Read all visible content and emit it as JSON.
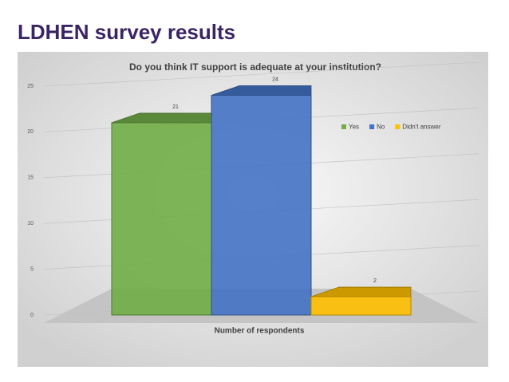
{
  "slide_title": "LDHEN survey results",
  "chart_data": {
    "type": "bar",
    "title": "Do you think IT support is adequate at your institution?",
    "x_label": "Number of respondents",
    "categories": [
      null
    ],
    "series": [
      {
        "name": "Yes",
        "color": "#70ad47",
        "values": [
          21
        ]
      },
      {
        "name": "No",
        "color": "#4472c4",
        "values": [
          24
        ]
      },
      {
        "name": "Didn't answer",
        "color": "#ffc000",
        "values": [
          2
        ]
      }
    ],
    "ylim": [
      0,
      25
    ],
    "yticks": [
      0,
      5,
      10,
      15,
      20,
      25
    ],
    "grid": true,
    "legend": "top-right"
  }
}
